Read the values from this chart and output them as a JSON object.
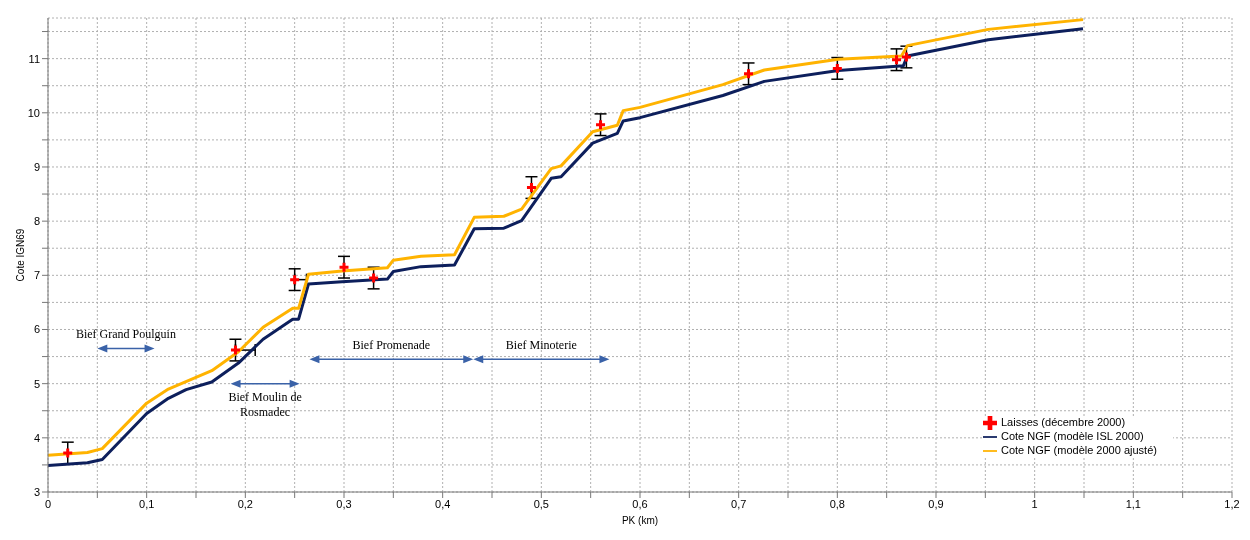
{
  "chart_data": {
    "type": "line",
    "xlabel": "PK (km)",
    "ylabel": "Cote IGN69",
    "xlim": [
      0,
      1.2
    ],
    "ylim": [
      3,
      11.75
    ],
    "xticks": [
      0,
      {
        "value": 0.05,
        "label": null
      },
      {
        "value": 0.1,
        "label": "0,1"
      },
      {
        "value": 0.15,
        "label": null
      },
      {
        "value": 0.2,
        "label": "0,2"
      },
      {
        "value": 0.25,
        "label": null
      },
      {
        "value": 0.3,
        "label": "0,3"
      },
      {
        "value": 0.35,
        "label": null
      },
      {
        "value": 0.4,
        "label": "0,4"
      },
      {
        "value": 0.45,
        "label": null
      },
      {
        "value": 0.5,
        "label": "0,5"
      },
      {
        "value": 0.55,
        "label": null
      },
      {
        "value": 0.6,
        "label": "0,6"
      },
      {
        "value": 0.65,
        "label": null
      },
      {
        "value": 0.7,
        "label": "0,7"
      },
      {
        "value": 0.75,
        "label": null
      },
      {
        "value": 0.8,
        "label": "0,8"
      },
      {
        "value": 0.85,
        "label": null
      },
      {
        "value": 0.9,
        "label": "0,9"
      },
      {
        "value": 0.95,
        "label": null
      },
      1,
      {
        "value": 1.05,
        "label": null
      },
      {
        "value": 1.1,
        "label": "1,1"
      },
      {
        "value": 1.15,
        "label": null
      },
      {
        "value": 1.2,
        "label": "1,2"
      }
    ],
    "yticks": [
      3,
      {
        "value": 3.5,
        "label": null
      },
      4,
      {
        "value": 4.5,
        "label": null
      },
      5,
      {
        "value": 5.5,
        "label": null
      },
      6,
      {
        "value": 6.5,
        "label": null
      },
      7,
      {
        "value": 7.5,
        "label": null
      },
      8,
      {
        "value": 8.5,
        "label": null
      },
      9,
      {
        "value": 9.5,
        "label": null
      },
      10,
      {
        "value": 10.5,
        "label": null
      },
      11,
      {
        "value": 11.5,
        "label": null
      }
    ],
    "grid": true,
    "legend": "bottom right",
    "line_style": "solid",
    "marker": "none",
    "series": [
      {
        "name": "Laisses (décembre 2000)",
        "type": "scatter",
        "marker": "cross",
        "color": "#ff0000",
        "x": [
          0.02,
          0.19,
          0.25,
          0.3,
          0.33,
          0.49,
          0.56,
          0.71,
          0.8,
          0.86,
          0.87
        ],
        "values": [
          3.72,
          5.62,
          6.92,
          7.15,
          6.95,
          8.62,
          9.78,
          10.72,
          10.82,
          10.98,
          11.03
        ],
        "errors": [
          0.2,
          0.2,
          0.2,
          0.2,
          0.2,
          0.2,
          0.2,
          0.2,
          0.2,
          0.2,
          0.2
        ],
        "xerrors": [
          null,
          [
            0.19,
            0.21
          ],
          [
            0.25,
            0.262
          ],
          null,
          null,
          null,
          null,
          null,
          null,
          null,
          null
        ]
      },
      {
        "name": "Cote NGF (modèle ISL 2000)",
        "color": "#0d1f5c",
        "x": [
          0,
          0.04,
          0.055,
          0.1,
          0.122,
          0.14,
          0.166,
          0.193,
          0.218,
          0.248,
          0.254,
          0.264,
          0.298,
          0.344,
          0.35,
          0.378,
          0.412,
          0.432,
          0.462,
          0.48,
          0.51,
          0.52,
          0.552,
          0.577,
          0.583,
          0.6,
          0.684,
          0.726,
          0.801,
          0.867,
          0.871,
          0.953,
          1.049
        ],
        "values": [
          3.49,
          3.54,
          3.6,
          4.45,
          4.73,
          4.89,
          5.03,
          5.38,
          5.82,
          6.19,
          6.19,
          6.84,
          6.88,
          6.93,
          7.07,
          7.16,
          7.19,
          7.86,
          7.87,
          8.01,
          8.79,
          8.82,
          9.44,
          9.62,
          9.85,
          9.91,
          10.32,
          10.58,
          10.78,
          10.87,
          11.05,
          11.35,
          11.55
        ]
      },
      {
        "name": "Cote NGF (modèle 2000 ajusté)",
        "color": "#ffb300",
        "x": [
          0,
          0.04,
          0.055,
          0.1,
          0.122,
          0.166,
          0.193,
          0.218,
          0.248,
          0.254,
          0.264,
          0.298,
          0.344,
          0.35,
          0.378,
          0.412,
          0.432,
          0.462,
          0.48,
          0.51,
          0.52,
          0.552,
          0.577,
          0.583,
          0.6,
          0.684,
          0.726,
          0.801,
          0.865,
          0.871,
          0.953,
          1.049
        ],
        "values": [
          3.68,
          3.73,
          3.8,
          4.64,
          4.9,
          5.24,
          5.59,
          6.04,
          6.39,
          6.39,
          7.02,
          7.08,
          7.14,
          7.28,
          7.35,
          7.38,
          8.07,
          8.09,
          8.22,
          8.97,
          9.02,
          9.65,
          9.77,
          10.04,
          10.1,
          10.52,
          10.79,
          10.99,
          11.05,
          11.24,
          11.54,
          11.72
        ]
      }
    ],
    "annotations": [
      "Bief Grand Poulguin",
      "Bief Moulin de Rosmadec",
      "Bief Promenade",
      "Bief Minoterie"
    ]
  }
}
